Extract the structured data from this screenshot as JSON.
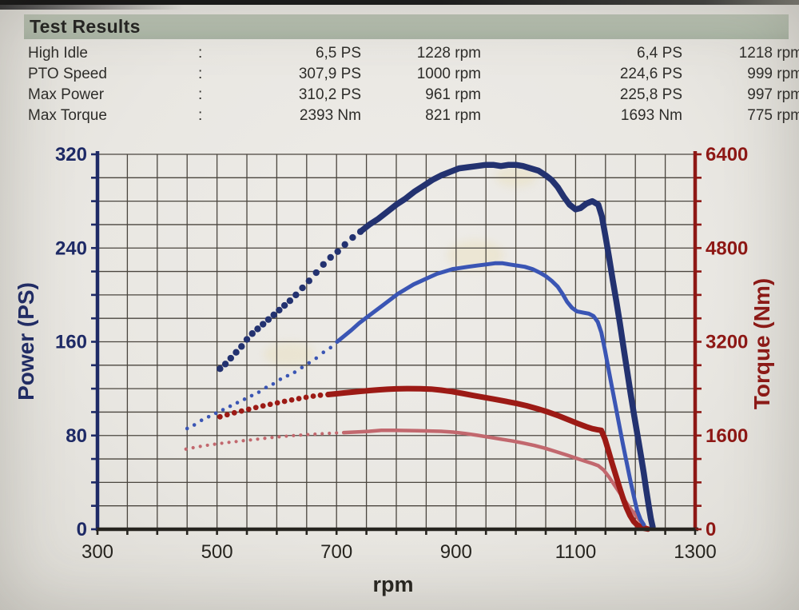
{
  "header": {
    "title": "Test Results"
  },
  "results": {
    "rows": [
      {
        "label": "High Idle",
        "sep": ":",
        "v1": "6,5 PS",
        "r1": "1228 rpm",
        "v2": "6,4 PS",
        "r2": "1218 rpm"
      },
      {
        "label": "PTO Speed",
        "sep": ":",
        "v1": "307,9 PS",
        "r1": "1000 rpm",
        "v2": "224,6 PS",
        "r2": "999 rpm"
      },
      {
        "label": "Max Power",
        "sep": ":",
        "v1": "310,2 PS",
        "r1": "961 rpm",
        "v2": "225,8 PS",
        "r2": "997 rpm"
      },
      {
        "label": "Max Torque",
        "sep": ":",
        "v1": "2393 Nm",
        "r1": "821 rpm",
        "v2": "1693 Nm",
        "r2": "775 rpm"
      }
    ]
  },
  "colors": {
    "paper": "#e9e7e2",
    "title_bar": "#b2bcac",
    "text": "#2e2d2a",
    "grid": "#4b463f",
    "x_axis": "#26241f",
    "left_axis": "#1e2a66",
    "right_axis": "#8e1815",
    "power_tuned": "#233270",
    "power_stock": "#3a55b4",
    "torque_tuned": "#9c1a15",
    "torque_stock": "#c2686e"
  },
  "chart_data": {
    "type": "line",
    "title": "",
    "xlabel": "rpm",
    "ylabel_left": "Power (PS)",
    "ylabel_right": "Torque (Nm)",
    "x_range": [
      300,
      1300
    ],
    "y_left_range": [
      0,
      320
    ],
    "y_right_range": [
      0,
      6400
    ],
    "x_ticks_labeled": [
      300,
      500,
      700,
      900,
      1100,
      1300
    ],
    "x_grid_step": 50,
    "y_left_ticks_labeled": [
      0,
      80,
      160,
      240,
      320
    ],
    "y_left_grid_step": 20,
    "y_right_ticks_labeled": [
      0,
      1600,
      3200,
      4800,
      6400
    ],
    "y_right_grid_step": 400,
    "grid": true,
    "legend": "none",
    "series": [
      {
        "name": "torque-stock",
        "axis": "right",
        "unit": "Nm",
        "color": "#c2686e",
        "dot_until": 715,
        "dot_radius": 2.1,
        "line_width": 4.5,
        "points": [
          [
            448,
            1368
          ],
          [
            460,
            1392
          ],
          [
            472,
            1414
          ],
          [
            484,
            1434
          ],
          [
            496,
            1452
          ],
          [
            508,
            1468
          ],
          [
            520,
            1483
          ],
          [
            532,
            1497
          ],
          [
            544,
            1511
          ],
          [
            556,
            1524
          ],
          [
            568,
            1538
          ],
          [
            580,
            1552
          ],
          [
            592,
            1566
          ],
          [
            604,
            1578
          ],
          [
            616,
            1589
          ],
          [
            628,
            1599
          ],
          [
            640,
            1608
          ],
          [
            652,
            1616
          ],
          [
            664,
            1624
          ],
          [
            676,
            1631
          ],
          [
            688,
            1638
          ],
          [
            700,
            1644
          ],
          [
            712,
            1650
          ],
          [
            726,
            1657
          ],
          [
            740,
            1664
          ],
          [
            755,
            1672
          ],
          [
            775,
            1690
          ],
          [
            795,
            1689
          ],
          [
            815,
            1685
          ],
          [
            835,
            1681
          ],
          [
            855,
            1677
          ],
          [
            875,
            1671
          ],
          [
            895,
            1658
          ],
          [
            915,
            1635
          ],
          [
            935,
            1605
          ],
          [
            955,
            1572
          ],
          [
            975,
            1538
          ],
          [
            995,
            1505
          ],
          [
            1013,
            1470
          ],
          [
            1031,
            1430
          ],
          [
            1049,
            1382
          ],
          [
            1067,
            1325
          ],
          [
            1085,
            1268
          ],
          [
            1100,
            1216
          ],
          [
            1115,
            1165
          ],
          [
            1128,
            1122
          ],
          [
            1138,
            1085
          ],
          [
            1147,
            1010
          ],
          [
            1156,
            890
          ],
          [
            1165,
            755
          ],
          [
            1174,
            615
          ],
          [
            1183,
            480
          ],
          [
            1192,
            350
          ],
          [
            1200,
            245
          ],
          [
            1207,
            155
          ],
          [
            1213,
            80
          ],
          [
            1218,
            30
          ],
          [
            1222,
            8
          ]
        ]
      },
      {
        "name": "torque-tuned",
        "axis": "right",
        "unit": "Nm",
        "color": "#9c1a15",
        "dot_until": 695,
        "dot_radius": 3.4,
        "line_width": 7,
        "points": [
          [
            505,
            1920
          ],
          [
            517,
            1955
          ],
          [
            529,
            1988
          ],
          [
            541,
            2018
          ],
          [
            553,
            2048
          ],
          [
            565,
            2078
          ],
          [
            577,
            2106
          ],
          [
            589,
            2132
          ],
          [
            601,
            2158
          ],
          [
            613,
            2183
          ],
          [
            625,
            2207
          ],
          [
            637,
            2230
          ],
          [
            649,
            2252
          ],
          [
            661,
            2272
          ],
          [
            673,
            2288
          ],
          [
            686,
            2300
          ],
          [
            698,
            2312
          ],
          [
            712,
            2326
          ],
          [
            726,
            2340
          ],
          [
            740,
            2354
          ],
          [
            755,
            2368
          ],
          [
            770,
            2380
          ],
          [
            785,
            2390
          ],
          [
            800,
            2396
          ],
          [
            821,
            2400
          ],
          [
            840,
            2398
          ],
          [
            858,
            2392
          ],
          [
            875,
            2375
          ],
          [
            893,
            2350
          ],
          [
            910,
            2320
          ],
          [
            928,
            2285
          ],
          [
            945,
            2255
          ],
          [
            963,
            2222
          ],
          [
            981,
            2188
          ],
          [
            1000,
            2150
          ],
          [
            1018,
            2108
          ],
          [
            1036,
            2058
          ],
          [
            1054,
            2000
          ],
          [
            1072,
            1935
          ],
          [
            1090,
            1862
          ],
          [
            1105,
            1800
          ],
          [
            1118,
            1750
          ],
          [
            1128,
            1716
          ],
          [
            1136,
            1700
          ],
          [
            1143,
            1688
          ],
          [
            1149,
            1540
          ],
          [
            1155,
            1340
          ],
          [
            1161,
            1130
          ],
          [
            1167,
            930
          ],
          [
            1173,
            730
          ],
          [
            1179,
            540
          ],
          [
            1185,
            370
          ],
          [
            1191,
            235
          ],
          [
            1197,
            135
          ],
          [
            1203,
            75
          ],
          [
            1209,
            38
          ],
          [
            1215,
            15
          ],
          [
            1221,
            4
          ]
        ]
      },
      {
        "name": "power-stock",
        "axis": "left",
        "unit": "PS",
        "color": "#3a55b4",
        "dot_until": 707,
        "dot_radius": 2.3,
        "line_width": 5,
        "points": [
          [
            450,
            86
          ],
          [
            462,
            89
          ],
          [
            474,
            93
          ],
          [
            486,
            96
          ],
          [
            498,
            99
          ],
          [
            510,
            102
          ],
          [
            522,
            105
          ],
          [
            534,
            108
          ],
          [
            546,
            111
          ],
          [
            558,
            114
          ],
          [
            570,
            117
          ],
          [
            582,
            121
          ],
          [
            594,
            124
          ],
          [
            606,
            128
          ],
          [
            618,
            131
          ],
          [
            630,
            134
          ],
          [
            642,
            138
          ],
          [
            654,
            142
          ],
          [
            666,
            146
          ],
          [
            678,
            151
          ],
          [
            690,
            155
          ],
          [
            701,
            160
          ],
          [
            713,
            165
          ],
          [
            725,
            170
          ],
          [
            738,
            176
          ],
          [
            751,
            181
          ],
          [
            764,
            186
          ],
          [
            777,
            191
          ],
          [
            790,
            196
          ],
          [
            803,
            201
          ],
          [
            816,
            205
          ],
          [
            829,
            209
          ],
          [
            842,
            212
          ],
          [
            855,
            215
          ],
          [
            868,
            218
          ],
          [
            881,
            220
          ],
          [
            894,
            222
          ],
          [
            907,
            223
          ],
          [
            920,
            224
          ],
          [
            935,
            225
          ],
          [
            950,
            226
          ],
          [
            965,
            227
          ],
          [
            978,
            227
          ],
          [
            990,
            226
          ],
          [
            1002,
            225
          ],
          [
            1015,
            224
          ],
          [
            1028,
            222
          ],
          [
            1040,
            219
          ],
          [
            1050,
            216
          ],
          [
            1060,
            212
          ],
          [
            1070,
            207
          ],
          [
            1078,
            201
          ],
          [
            1086,
            194
          ],
          [
            1094,
            189
          ],
          [
            1102,
            186
          ],
          [
            1112,
            185
          ],
          [
            1122,
            184
          ],
          [
            1130,
            182
          ],
          [
            1137,
            177
          ],
          [
            1143,
            168
          ],
          [
            1149,
            153
          ],
          [
            1155,
            137
          ],
          [
            1161,
            121
          ],
          [
            1167,
            105
          ],
          [
            1173,
            89
          ],
          [
            1179,
            73
          ],
          [
            1185,
            58
          ],
          [
            1191,
            43
          ],
          [
            1197,
            29
          ],
          [
            1203,
            16
          ],
          [
            1209,
            8
          ],
          [
            1214,
            4
          ]
        ]
      },
      {
        "name": "power-tuned",
        "axis": "left",
        "unit": "PS",
        "color": "#233270",
        "dot_until": 742,
        "dot_radius": 4.2,
        "line_width": 7.5,
        "points": [
          [
            505,
            137
          ],
          [
            514,
            141
          ],
          [
            523,
            146
          ],
          [
            532,
            151
          ],
          [
            541,
            156
          ],
          [
            550,
            162
          ],
          [
            559,
            167
          ],
          [
            568,
            171
          ],
          [
            577,
            175
          ],
          [
            586,
            179
          ],
          [
            595,
            183
          ],
          [
            604,
            187
          ],
          [
            613,
            191
          ],
          [
            622,
            195
          ],
          [
            632,
            200
          ],
          [
            643,
            206
          ],
          [
            654,
            212
          ],
          [
            666,
            219
          ],
          [
            678,
            226
          ],
          [
            690,
            232
          ],
          [
            702,
            237
          ],
          [
            714,
            243
          ],
          [
            727,
            249
          ],
          [
            740,
            254
          ],
          [
            755,
            260
          ],
          [
            770,
            265
          ],
          [
            785,
            271
          ],
          [
            800,
            277
          ],
          [
            815,
            282
          ],
          [
            830,
            288
          ],
          [
            845,
            293
          ],
          [
            860,
            298
          ],
          [
            875,
            302
          ],
          [
            890,
            305
          ],
          [
            905,
            308
          ],
          [
            920,
            309
          ],
          [
            935,
            310
          ],
          [
            950,
            311
          ],
          [
            962,
            311
          ],
          [
            975,
            310
          ],
          [
            988,
            311
          ],
          [
            1000,
            311
          ],
          [
            1012,
            310
          ],
          [
            1025,
            308
          ],
          [
            1038,
            306
          ],
          [
            1050,
            302
          ],
          [
            1060,
            298
          ],
          [
            1070,
            292
          ],
          [
            1080,
            284
          ],
          [
            1090,
            277
          ],
          [
            1100,
            273
          ],
          [
            1108,
            274
          ],
          [
            1118,
            278
          ],
          [
            1128,
            280
          ],
          [
            1138,
            277
          ],
          [
            1144,
            267
          ],
          [
            1150,
            250
          ],
          [
            1156,
            232
          ],
          [
            1162,
            213
          ],
          [
            1168,
            195
          ],
          [
            1174,
            176
          ],
          [
            1180,
            156
          ],
          [
            1186,
            136
          ],
          [
            1192,
            116
          ],
          [
            1198,
            97
          ],
          [
            1204,
            79
          ],
          [
            1209,
            64
          ],
          [
            1214,
            48
          ],
          [
            1218,
            34
          ],
          [
            1222,
            21
          ],
          [
            1226,
            9
          ],
          [
            1229,
            2
          ]
        ]
      }
    ]
  }
}
